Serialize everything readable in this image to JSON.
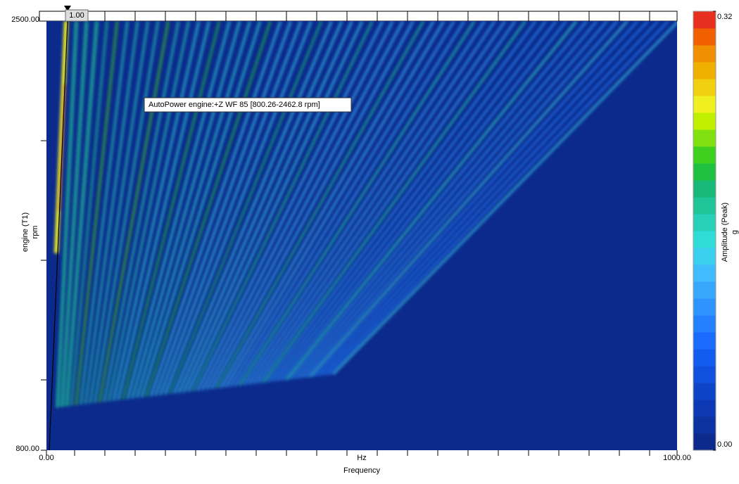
{
  "chart_data": {
    "type": "heatmap",
    "x_label": "Frequency",
    "x_unit": "Hz",
    "y_label": "engine (T1)",
    "y_unit": "rpm",
    "xlim": [
      0,
      1000
    ],
    "xticks": [
      {
        "value": 0,
        "label": "0.00"
      },
      {
        "value": 1000,
        "label": "1000.00"
      }
    ],
    "ylim": [
      800,
      2500
    ],
    "yticks": [
      {
        "value": 800,
        "label": "800.00"
      },
      {
        "value": 2500,
        "label": "2500.00"
      }
    ],
    "annotation": "AutoPower engine:+Z WF 85 [800.26-2462.8 rpm]",
    "cursor_label": "1.00",
    "colorbar": {
      "label": "Amplitude (Peak)",
      "unit": "g",
      "clim": [
        0,
        0.32
      ],
      "ticks": [
        {
          "value": 0,
          "label": "0.00"
        },
        {
          "value": 0.32,
          "label": "0.32"
        }
      ],
      "colors": [
        "#0b2a8c",
        "#0c32a0",
        "#0d3ab4",
        "#0e44c8",
        "#1050dc",
        "#125cf0",
        "#1a6cff",
        "#2480ff",
        "#2e94ff",
        "#38a8ff",
        "#40bcff",
        "#3cd0f0",
        "#30dcd8",
        "#28d0b8",
        "#20c498",
        "#18b878",
        "#20c040",
        "#40d020",
        "#80e010",
        "#c0f000",
        "#f0f020",
        "#f0d010",
        "#f0b000",
        "#f09000",
        "#f06000",
        "#e83020"
      ]
    }
  }
}
